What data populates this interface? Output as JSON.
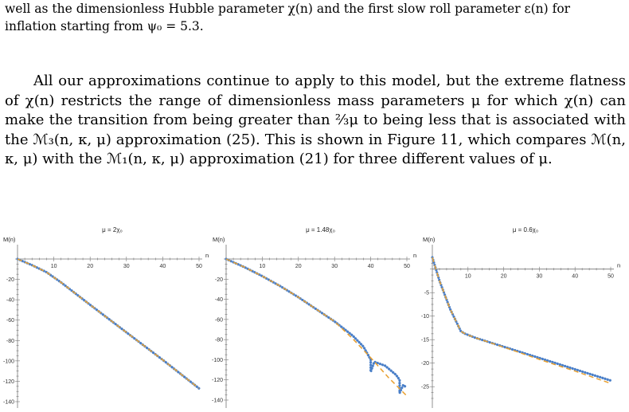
{
  "text": {
    "para1_line1": "well as the dimensionless Hubble parameter χ(n) and the first slow roll parameter ε(n) for",
    "para1_line2": "inflation starting from ψ₀ = 5.3.",
    "para2": "All our approximations continue to apply to this model, but the extreme flatness of χ(n) restricts the range of dimensionless mass parameters μ for which χ(n) can make the transition from being greater than ⅔μ to being less that is associated with the ℳ₃(n, κ, μ) approximation (25). This is shown in Figure 11, which compares ℳ(n, κ, μ) with the ℳ₁(n, κ, μ) approximation (21) for three different values of μ."
  },
  "chart_data": [
    {
      "type": "line",
      "title": "μ = 2χ₀",
      "ylabel": "M(n)",
      "xlabel": "n",
      "xlim": [
        0,
        50
      ],
      "ylim": [
        -140,
        0
      ],
      "xticks": [
        10,
        20,
        30,
        40,
        50
      ],
      "yticks": [
        -20,
        -40,
        -60,
        -80,
        -100,
        -120,
        -140
      ],
      "series": [
        {
          "style": "dotted",
          "color": "#4a7fc8",
          "x": [
            0,
            4,
            8,
            12,
            20,
            30,
            40,
            50
          ],
          "y": [
            0,
            -6,
            -13,
            -23,
            -45,
            -72,
            -99,
            -127
          ]
        },
        {
          "style": "dashed",
          "color": "#e8a030",
          "x": [
            0,
            4,
            8,
            12,
            20,
            30,
            40,
            50
          ],
          "y": [
            0,
            -6,
            -13,
            -23,
            -45,
            -72,
            -99,
            -127
          ]
        }
      ]
    },
    {
      "type": "line",
      "title": "μ = 1.48χ₀",
      "ylabel": "M(n)",
      "xlabel": "n",
      "xlim": [
        0,
        50
      ],
      "ylim": [
        -140,
        0
      ],
      "xticks": [
        10,
        20,
        30,
        40,
        50
      ],
      "yticks": [
        -20,
        -40,
        -60,
        -80,
        -100,
        -120,
        -140
      ],
      "series": [
        {
          "style": "dotted",
          "color": "#4a7fc8",
          "x": [
            0,
            5,
            10,
            15,
            20,
            25,
            30,
            35,
            38,
            40,
            40,
            41,
            44,
            47,
            48,
            48,
            49,
            50
          ],
          "y": [
            0,
            -8,
            -17,
            -27,
            -38,
            -50,
            -62,
            -76,
            -87,
            -100,
            -112,
            -102,
            -106,
            -115,
            -120,
            -133,
            -125,
            -128
          ]
        },
        {
          "style": "dashed",
          "color": "#e8a030",
          "x": [
            0,
            5,
            10,
            15,
            20,
            25,
            30,
            35,
            40,
            45,
            50
          ],
          "y": [
            0,
            -8,
            -17,
            -27,
            -38,
            -50,
            -62,
            -79,
            -98,
            -118,
            -136
          ]
        }
      ]
    },
    {
      "type": "line",
      "title": "μ = 0.6χ₀",
      "ylabel": "M(n)",
      "xlabel": "n",
      "xlim": [
        0,
        50
      ],
      "ylim": [
        -27,
        3
      ],
      "xticks": [
        10,
        20,
        30,
        40,
        50
      ],
      "yticks": [
        -5,
        -10,
        -15,
        -20,
        -25
      ],
      "series": [
        {
          "style": "dotted",
          "color": "#4a7fc8",
          "x": [
            0,
            2,
            5,
            8,
            9,
            12,
            20,
            30,
            40,
            50
          ],
          "y": [
            2.5,
            -2.5,
            -8.5,
            -13.2,
            -13.7,
            -14.6,
            -16.5,
            -18.9,
            -21.3,
            -23.7
          ]
        },
        {
          "style": "dashed",
          "color": "#e8a030",
          "x": [
            0,
            2,
            5,
            8,
            9,
            12,
            20,
            30,
            40,
            50
          ],
          "y": [
            2.5,
            -2.5,
            -8.5,
            -13.2,
            -13.7,
            -14.6,
            -16.6,
            -19.2,
            -21.7,
            -24.3
          ]
        }
      ]
    }
  ]
}
